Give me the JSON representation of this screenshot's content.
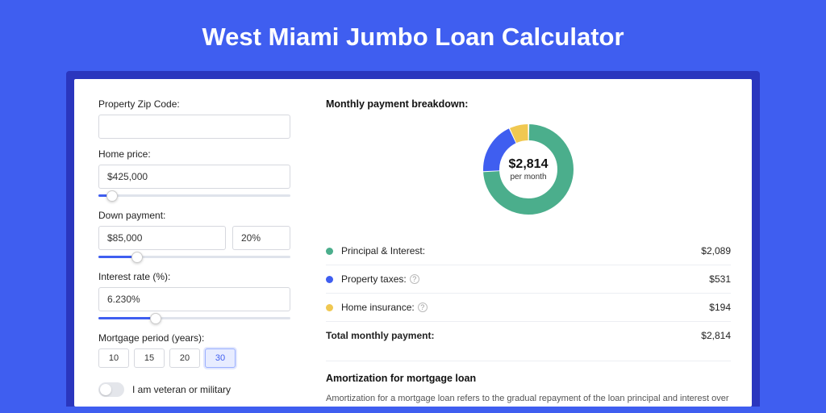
{
  "page": {
    "title": "West Miami Jumbo Loan Calculator"
  },
  "form": {
    "zip": {
      "label": "Property Zip Code:",
      "value": ""
    },
    "home_price": {
      "label": "Home price:",
      "value": "$425,000",
      "slider": {
        "fill_pct": 7,
        "thumb_pct": 7
      }
    },
    "down_payment": {
      "label": "Down payment:",
      "value": "$85,000",
      "pct": "20%",
      "slider": {
        "fill_pct": 20,
        "thumb_pct": 20
      }
    },
    "interest": {
      "label": "Interest rate (%):",
      "value": "6.230%",
      "slider": {
        "fill_pct": 30,
        "thumb_pct": 30
      }
    },
    "period": {
      "label": "Mortgage period (years):",
      "options": [
        "10",
        "15",
        "20",
        "30"
      ],
      "active_index": 3
    },
    "veteran": {
      "label": "I am veteran or military",
      "on": false
    }
  },
  "breakdown": {
    "title": "Monthly payment breakdown:",
    "center_value": "$2,814",
    "center_sub": "per month",
    "items": [
      {
        "label": "Principal & Interest:",
        "amount": "$2,089",
        "value": 2089,
        "color": "#4bae8c",
        "info": false
      },
      {
        "label": "Property taxes:",
        "amount": "$531",
        "value": 531,
        "color": "#3f5ef0",
        "info": true
      },
      {
        "label": "Home insurance:",
        "amount": "$194",
        "value": 194,
        "color": "#f0c851",
        "info": true
      }
    ],
    "total_label": "Total monthly payment:",
    "total_amount": "$2,814",
    "donut": {
      "type": "donut",
      "width": 120,
      "height": 120,
      "outer_radius": 56,
      "inner_radius": 36,
      "stroke_width": 20,
      "gap_color": "#fff",
      "gap_width": 2,
      "background": "#fff"
    }
  },
  "amort": {
    "title": "Amortization for mortgage loan",
    "text": "Amortization for a mortgage loan refers to the gradual repayment of the loan principal and interest over a specified"
  },
  "colors": {
    "page_bg": "#3f5ef0",
    "card_wrap_bg": "#2a36be",
    "card_bg": "#ffffff",
    "input_border": "#d6d8de",
    "slider_fill": "#3f5ef0",
    "divider": "#eceef3"
  }
}
